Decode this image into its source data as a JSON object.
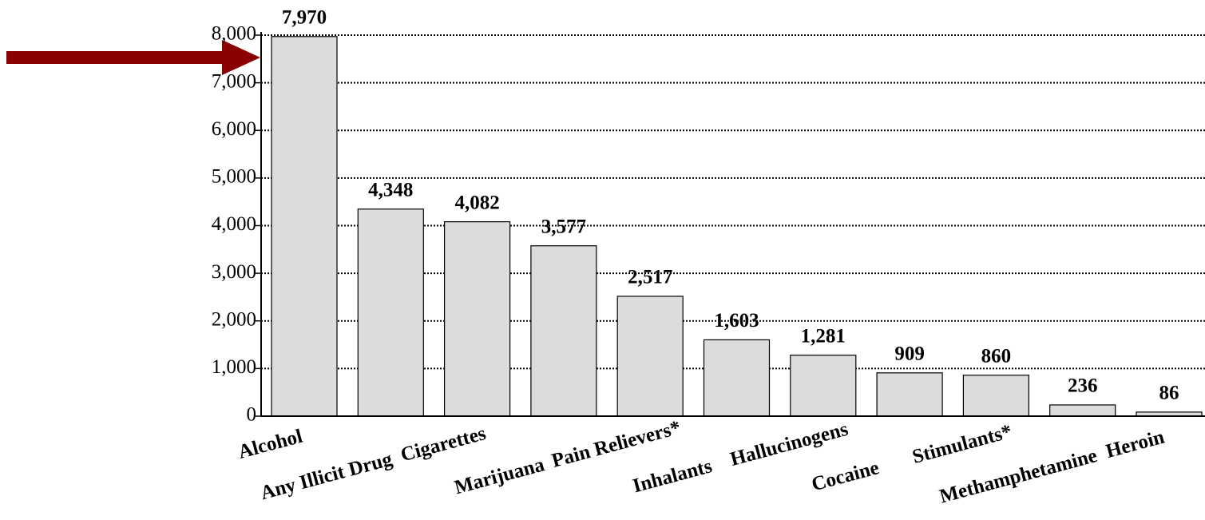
{
  "chart_data": {
    "type": "bar",
    "categories": [
      "Alcohol",
      "Any Illicit Drug",
      "Cigarettes",
      "Marijuana",
      "Pain Relievers*",
      "Inhalants",
      "Hallucinogens",
      "Cocaine",
      "Stimulants*",
      "Methamphetamine",
      "Heroin"
    ],
    "values": [
      7970,
      4348,
      4082,
      3577,
      2517,
      1603,
      1281,
      909,
      860,
      236,
      86
    ],
    "value_labels": [
      "7,970",
      "4,348",
      "4,082",
      "3,577",
      "2,517",
      "1,603",
      "1,281",
      "909",
      "860",
      "236",
      "86"
    ],
    "color": "#dcdcdc",
    "ylim": [
      0,
      8000
    ],
    "yticks": [
      0,
      {
        "value": 1000,
        "label": "1,000"
      },
      {
        "value": 2000,
        "label": "2,000"
      },
      {
        "value": 3000,
        "label": "3,000"
      },
      {
        "value": 4000,
        "label": "4,000"
      },
      {
        "value": 5000,
        "label": "5,000"
      },
      {
        "value": 6000,
        "label": "6,000"
      },
      {
        "value": 7000,
        "label": "7,000"
      },
      {
        "value": 8000,
        "label": "8,000"
      }
    ],
    "grid": true
  }
}
